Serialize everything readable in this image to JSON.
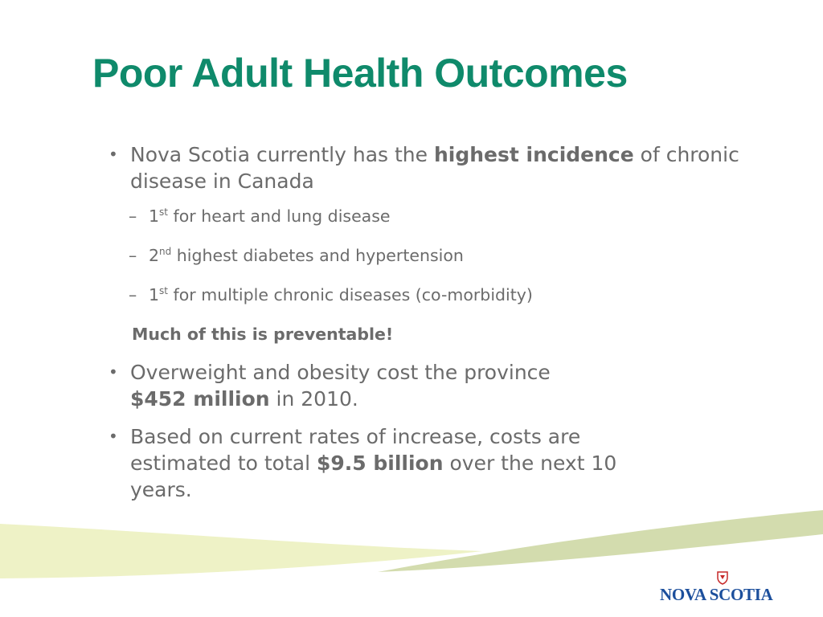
{
  "title": "Poor Adult Health Outcomes",
  "bullets": {
    "b1": {
      "pre": "Nova Scotia currently has the ",
      "bold": "highest incidence",
      "post": " of chronic disease in Canada",
      "subs": [
        {
          "num": "1",
          "sup": "st",
          "text": " for heart and lung disease"
        },
        {
          "num": "2",
          "sup": "nd",
          "text": " highest diabetes and hypertension"
        },
        {
          "num": "1",
          "sup": "st",
          "text": " for multiple chronic diseases (co-morbidity)"
        }
      ],
      "note": "Much of this is preventable!"
    },
    "b2": {
      "pre": "Overweight and obesity cost the province ",
      "bold": "$452 million",
      "post": " in 2010."
    },
    "b3": {
      "pre": "Based on current rates of increase, costs are estimated to total ",
      "bold": "$9.5 billion",
      "post": " over the next 10 years."
    }
  },
  "bullet_glyph": "•",
  "dash_glyph": "–",
  "logo": {
    "text": "NOVA SCOTIA",
    "color": "#1c4f9c"
  },
  "colors": {
    "title": "#0f8a6b",
    "body": "#6b6b6b",
    "swoosh_light": "#eef2c6",
    "swoosh_dark": "#d3dcae"
  }
}
